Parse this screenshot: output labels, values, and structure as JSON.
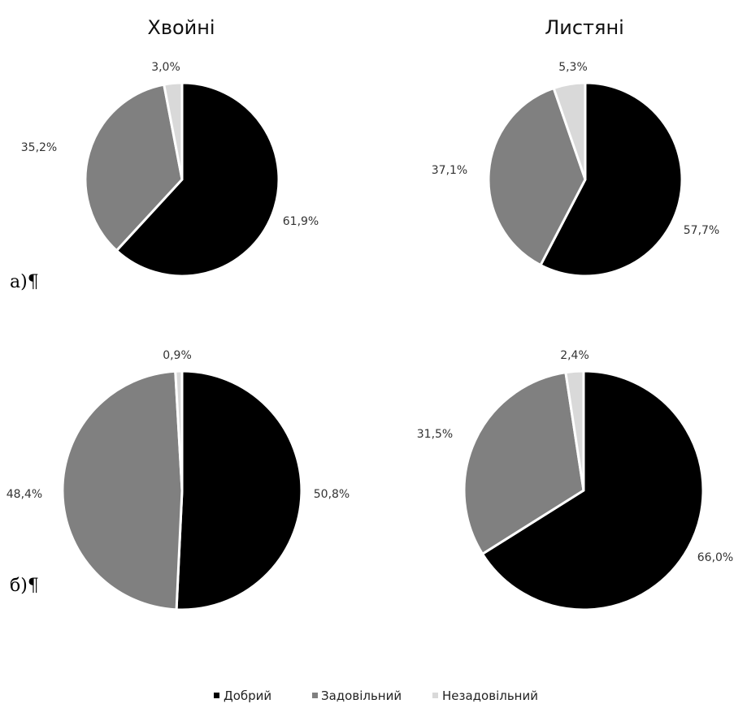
{
  "columns": [
    "Хвойні",
    "Листяні"
  ],
  "panels": [
    "а)¶",
    "б)¶"
  ],
  "colors": {
    "Добрий": "#000000",
    "Задовільний": "#808080",
    "Незадовільний": "#d9d9d9"
  },
  "chart_data": [
    {
      "type": "pie",
      "title": "Хвойні",
      "panel": "а)¶",
      "categories": [
        "Добрий",
        "Задовільний",
        "Незадовільний"
      ],
      "values": [
        61.9,
        35.2,
        3.0
      ],
      "labels": [
        "61,9%",
        "35,2%",
        "3,0%"
      ]
    },
    {
      "type": "pie",
      "title": "Листяні",
      "panel": "а)¶",
      "categories": [
        "Добрий",
        "Задовільний",
        "Незадовільний"
      ],
      "values": [
        57.7,
        37.1,
        5.3
      ],
      "labels": [
        "57,7%",
        "37,1%",
        "5,3%"
      ]
    },
    {
      "type": "pie",
      "title": "",
      "panel": "б)¶",
      "categories": [
        "Добрий",
        "Задовільний",
        "Незадовільний"
      ],
      "values": [
        50.8,
        48.4,
        0.9
      ],
      "labels": [
        "50,8%",
        "48,4%",
        "0,9%"
      ]
    },
    {
      "type": "pie",
      "title": "",
      "panel": "б)¶",
      "categories": [
        "Добрий",
        "Задовільний",
        "Незадовільний"
      ],
      "values": [
        66.0,
        31.5,
        2.4
      ],
      "labels": [
        "66,0%",
        "31,5%",
        "2,4%"
      ]
    }
  ],
  "legend": {
    "placement": "bottom",
    "items": [
      {
        "label": "Добрий",
        "color": "#000000"
      },
      {
        "label": "Задовільний",
        "color": "#808080"
      },
      {
        "label": "Незадовільний",
        "color": "#d9d9d9"
      }
    ]
  }
}
